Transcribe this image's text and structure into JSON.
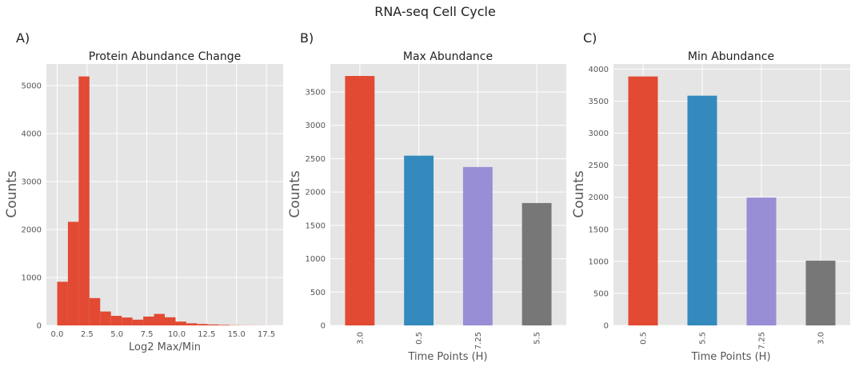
{
  "suptitle": "RNA-seq Cell Cycle",
  "chart_data": [
    {
      "panel": "A)",
      "type": "bar",
      "title": "Protein Abundance Change",
      "xlabel": "Log2 Max/Min",
      "ylabel": "Counts",
      "xlim": [
        -0.9,
        18.9
      ],
      "ylim": [
        0,
        5450
      ],
      "xticks": [
        "0.0",
        "2.5",
        "5.0",
        "7.5",
        "10.0",
        "12.5",
        "15.0",
        "17.5"
      ],
      "xtick_values": [
        0,
        2.5,
        5,
        7.5,
        10,
        12.5,
        15,
        17.5
      ],
      "yticks": [
        "0",
        "1000",
        "2000",
        "3000",
        "4000",
        "5000"
      ],
      "ytick_values": [
        0,
        1000,
        2000,
        3000,
        4000,
        5000
      ],
      "bin_edges": [
        0,
        0.9,
        1.8,
        2.7,
        3.6,
        4.5,
        5.4,
        6.3,
        7.2,
        8.1,
        9.0,
        9.9,
        10.8,
        11.7,
        12.6,
        13.5,
        14.4,
        15.3,
        16.2,
        17.1,
        18.0
      ],
      "values": [
        910,
        2160,
        5190,
        570,
        290,
        200,
        165,
        120,
        185,
        240,
        170,
        80,
        45,
        30,
        20,
        12,
        5,
        3,
        2,
        1
      ],
      "color": "#E24A33"
    },
    {
      "panel": "B)",
      "type": "bar",
      "title": "Max Abundance",
      "xlabel": "Time Points (H)",
      "ylabel": "Counts",
      "categories": [
        "3.0",
        "0.5",
        "7.25",
        "5.5"
      ],
      "values": [
        3740,
        2545,
        2375,
        1835
      ],
      "colors": [
        "#E24A33",
        "#348ABD",
        "#988ED5",
        "#777777"
      ],
      "ylim": [
        0,
        3920
      ],
      "yticks": [
        "0",
        "500",
        "1000",
        "1500",
        "2000",
        "2500",
        "3000",
        "3500"
      ],
      "ytick_values": [
        0,
        500,
        1000,
        1500,
        2000,
        2500,
        3000,
        3500
      ]
    },
    {
      "panel": "C)",
      "type": "bar",
      "title": "Min Abundance",
      "xlabel": "Time Points (H)",
      "ylabel": "Counts",
      "categories": [
        "0.5",
        "5.5",
        "7.25",
        "3.0"
      ],
      "values": [
        3885,
        3585,
        1995,
        1010
      ],
      "colors": [
        "#E24A33",
        "#348ABD",
        "#988ED5",
        "#777777"
      ],
      "ylim": [
        0,
        4080
      ],
      "yticks": [
        "0",
        "500",
        "1000",
        "1500",
        "2000",
        "2500",
        "3000",
        "3500",
        "4000"
      ],
      "ytick_values": [
        0,
        500,
        1000,
        1500,
        2000,
        2500,
        3000,
        3500,
        4000
      ]
    }
  ]
}
